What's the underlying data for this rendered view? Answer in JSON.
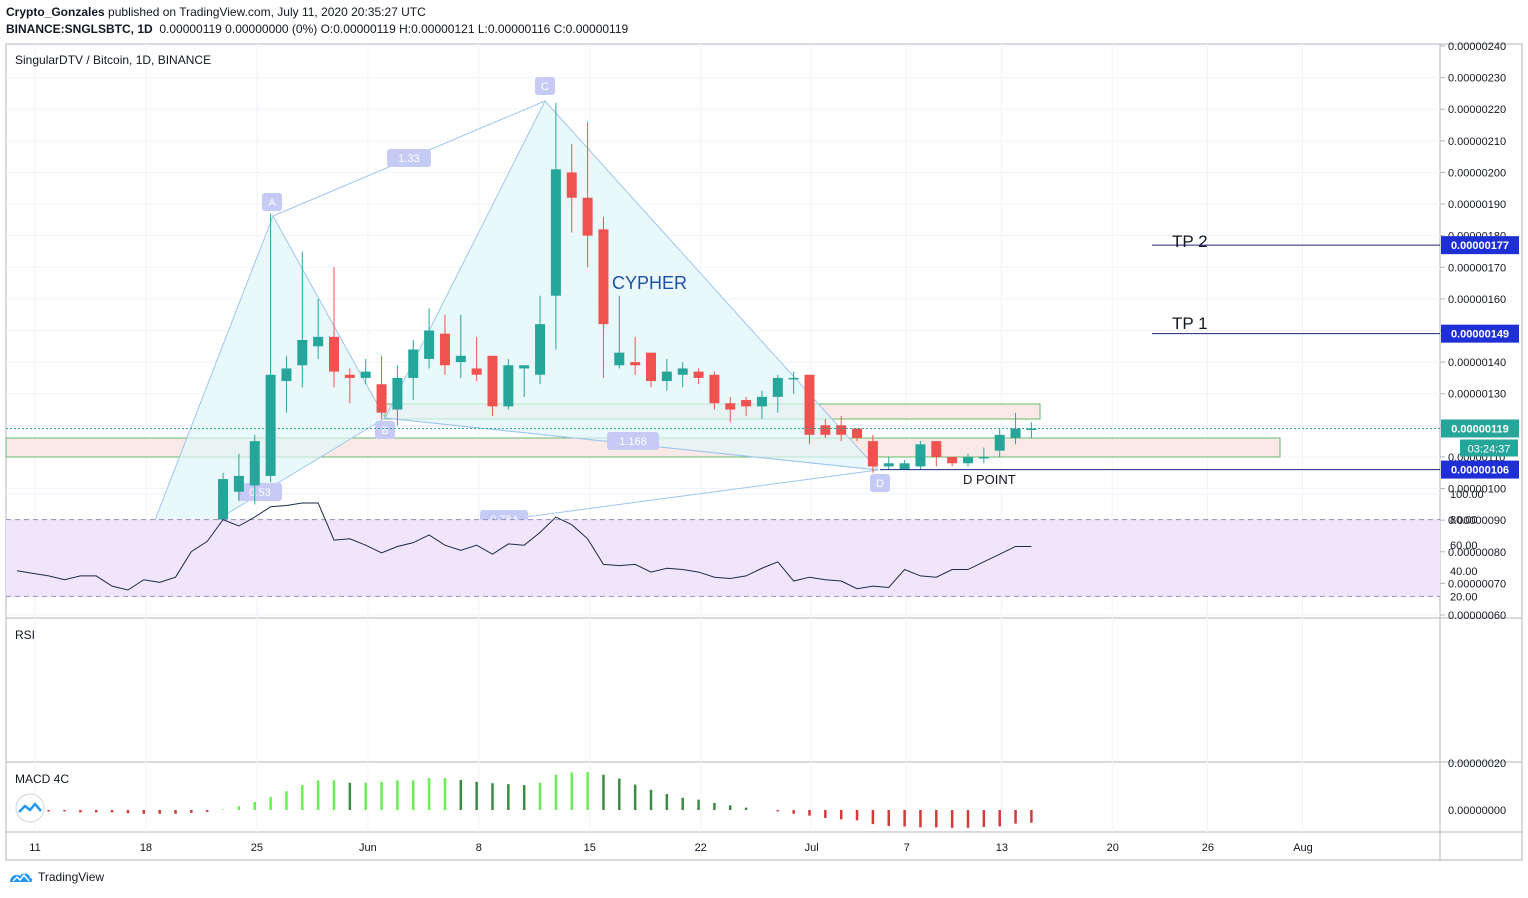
{
  "header": {
    "author": "Crypto_Gonzales",
    "published_text": "published on TradingView.com, July 11, 2020 20:35:27 UTC",
    "symbol_line": "BINANCE:SNGLSBTC, 1D",
    "ohlc_line": "0.00000119 0.00000000 (0%) O:0.00000119 H:0.00000121 L:0.00000116 C:0.00000119"
  },
  "pane_titles": {
    "main": "SingularDTV / Bitcoin, 1D, BINANCE",
    "rsi": "RSI",
    "macd": "MACD 4C"
  },
  "annotations": {
    "cypher": "CYPHER",
    "tp1": "TP 1",
    "tp2": "TP 2",
    "d_point": "D POINT",
    "point_labels": {
      "X": "X",
      "A": "A",
      "B": "B",
      "C": "C",
      "D": "D"
    },
    "ratios": {
      "xa_c": "1.33",
      "ab": "0.53",
      "xc_d": "1.168",
      "xd": "0.784"
    }
  },
  "price_tags": {
    "tp2": "0.00000177",
    "tp1": "0.00000149",
    "last": "0.00000119",
    "countdown": "03:24:37",
    "d": "0.00000106"
  },
  "footer": {
    "brand": "TradingView"
  },
  "colors": {
    "up": "#26a69a",
    "down": "#ef5350",
    "pattern_fill": "#e0f7fa",
    "pattern_line": "#9ec6f0",
    "tp_line": "#1a237e",
    "tag_bg": "#1f2fd6",
    "rsi_band": "#f1e5fc",
    "macd_up_strong": "#66f052",
    "macd_up_weak": "#3d8b40",
    "macd_down": "#d33a3a",
    "zone_fill": "#fbe9e7",
    "zone_border": "#66bb6a"
  },
  "chart_data": [
    {
      "type": "candlestick",
      "title": "SingularDTV / Bitcoin, 1D, BINANCE",
      "x_tick_labels": [
        "11",
        "18",
        "25",
        "Jun",
        "8",
        "15",
        "22",
        "Jul",
        "7",
        "13",
        "20",
        "26",
        "Aug"
      ],
      "y_tick_labels": [
        "0.00000240",
        "0.00000230",
        "0.00000220",
        "0.00000210",
        "0.00000200",
        "0.00000190",
        "0.00000180",
        "0.00000170",
        "0.00000160",
        "0.00000150",
        "0.00000140",
        "0.00000130",
        "0.00000120",
        "0.00000110",
        "0.00000100",
        "0.00000090",
        "0.00000080",
        "0.00000070",
        "0.00000060"
      ],
      "ylim": [
        6e-07,
        2.4e-06
      ],
      "ohlc_x1e8": [
        [
          87,
          83,
          89,
          82
        ],
        [
          83,
          84,
          86,
          81
        ],
        [
          84,
          86,
          87,
          80
        ],
        [
          81,
          83,
          84,
          79
        ],
        [
          82,
          81,
          85,
          79
        ],
        [
          81,
          81,
          84,
          79
        ],
        [
          80,
          79,
          82,
          78
        ],
        [
          77,
          79,
          80,
          75
        ],
        [
          78,
          77,
          79,
          76
        ],
        [
          78,
          77,
          79,
          75
        ],
        [
          78,
          79,
          80,
          76
        ],
        [
          80,
          84,
          86,
          78
        ],
        [
          85,
          87,
          89,
          84
        ],
        [
          89,
          103,
          105,
          85
        ],
        [
          99,
          104,
          111,
          96
        ],
        [
          101,
          115,
          117,
          95
        ],
        [
          104,
          136,
          187,
          102
        ],
        [
          134,
          138,
          142,
          124
        ],
        [
          139,
          147,
          175,
          132
        ],
        [
          145,
          148,
          160,
          141
        ],
        [
          148,
          137,
          170,
          132
        ],
        [
          136,
          135,
          138,
          127
        ],
        [
          135,
          137,
          141,
          133
        ],
        [
          133,
          124,
          142,
          122
        ],
        [
          125,
          135,
          139,
          120
        ],
        [
          135,
          144,
          147,
          128
        ],
        [
          141,
          150,
          157,
          138
        ],
        [
          149,
          139,
          155,
          136
        ],
        [
          140,
          142,
          155,
          135
        ],
        [
          138,
          136,
          148,
          134
        ],
        [
          142,
          126,
          140,
          123
        ],
        [
          126,
          139,
          141,
          125
        ],
        [
          138,
          139,
          139,
          129
        ],
        [
          136,
          152,
          161,
          133
        ],
        [
          161,
          201,
          222,
          144
        ],
        [
          200,
          192,
          209,
          181
        ],
        [
          192,
          180,
          216,
          170
        ],
        [
          182,
          152,
          186,
          135
        ],
        [
          139,
          143,
          161,
          138
        ],
        [
          140,
          139,
          148,
          136
        ],
        [
          143,
          134,
          142,
          132
        ],
        [
          134,
          137,
          141,
          131
        ],
        [
          136,
          138,
          140,
          132
        ],
        [
          137,
          135,
          138,
          133
        ],
        [
          136,
          127,
          137,
          125
        ],
        [
          127,
          125,
          129,
          121
        ],
        [
          128,
          126,
          129,
          123
        ],
        [
          126,
          129,
          131,
          122
        ],
        [
          129,
          135,
          136,
          124
        ],
        [
          135,
          135,
          137,
          130
        ],
        [
          136,
          117,
          136,
          114
        ],
        [
          120,
          117,
          122,
          116
        ],
        [
          120,
          117,
          123,
          115
        ],
        [
          119,
          116,
          119,
          115
        ],
        [
          115,
          107,
          117,
          105
        ],
        [
          107,
          108,
          110,
          106
        ],
        [
          106,
          108,
          109,
          106
        ],
        [
          107,
          114,
          115,
          106
        ],
        [
          115,
          110,
          115,
          107
        ],
        [
          110,
          108,
          110,
          107
        ],
        [
          108,
          110,
          111,
          107
        ],
        [
          110,
          110,
          113,
          108
        ],
        [
          112,
          117,
          119,
          110
        ],
        [
          116,
          119,
          124,
          114
        ],
        [
          119,
          119,
          121,
          116
        ]
      ]
    },
    {
      "type": "line",
      "title": "RSI",
      "y_tick_labels": [
        "100.00",
        "80.00",
        "60.00",
        "40.00",
        "20.00"
      ],
      "ylim": [
        0,
        100
      ],
      "band": [
        20,
        80
      ],
      "values": [
        40,
        38,
        36,
        33,
        36,
        36,
        28,
        25,
        33,
        31,
        35,
        55,
        63,
        80,
        75,
        82,
        90,
        91,
        93,
        93,
        64,
        65,
        60,
        54,
        59,
        62,
        68,
        60,
        56,
        60,
        53,
        61,
        60,
        70,
        82,
        76,
        65,
        45,
        44,
        45,
        39,
        42,
        41,
        39,
        35,
        34,
        36,
        42,
        47,
        32,
        35,
        33,
        32,
        26,
        28,
        27,
        41,
        36,
        35,
        41,
        41,
        47,
        53,
        59,
        59
      ]
    },
    {
      "type": "bar",
      "title": "MACD 4C",
      "y_tick_labels": [
        "0.00000020",
        "0.00000000"
      ],
      "ylim": [
        -8e-08,
        2.2e-07
      ],
      "values_x1e8": [
        -0.2,
        -0.4,
        -0.6,
        -0.6,
        -1.0,
        -1.0,
        -1.0,
        -1.4,
        -1.6,
        -1.6,
        -1.6,
        -1.2,
        -0.8,
        0.2,
        1.6,
        3.4,
        5.6,
        8.0,
        10.6,
        12.6,
        12.6,
        11.6,
        11.6,
        12.0,
        12.6,
        12.6,
        13.6,
        13.6,
        12.8,
        12.0,
        11.4,
        11.0,
        10.6,
        11.6,
        15.0,
        16.0,
        16.2,
        15.0,
        13.4,
        10.8,
        8.6,
        6.8,
        5.2,
        4.4,
        3.0,
        2.0,
        1.0,
        0.0,
        -0.6,
        -1.6,
        -2.4,
        -3.4,
        -4.0,
        -4.4,
        -6.0,
        -6.8,
        -7.0,
        -7.4,
        -7.4,
        -7.6,
        -7.6,
        -7.2,
        -7.0,
        -5.8,
        -5.4
      ]
    }
  ]
}
